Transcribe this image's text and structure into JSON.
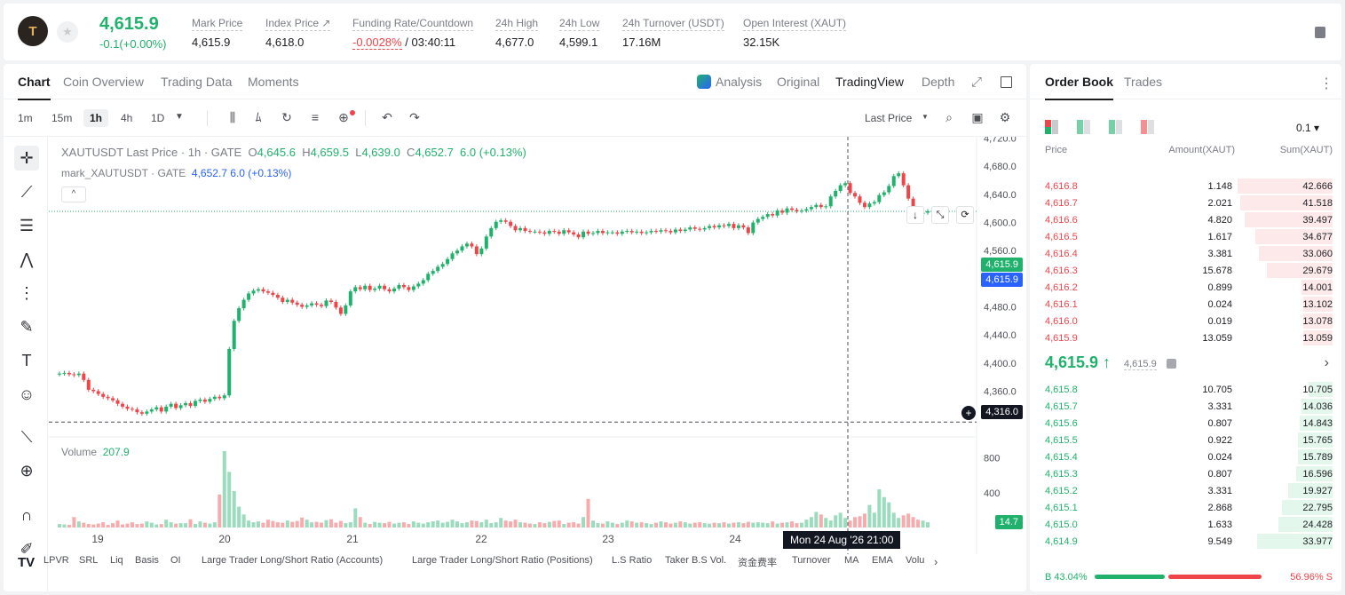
{
  "header": {
    "last_price": "4,615.9",
    "change": "-0.1(+0.00%)",
    "stats": [
      {
        "label": "Mark Price",
        "value": "4,615.9"
      },
      {
        "label": "Index Price ↗",
        "value": "4,618.0"
      },
      {
        "label": "Funding Rate/Countdown",
        "value_red": "-0.0028%",
        "value": " / 03:40:11"
      },
      {
        "label": "24h High",
        "value": "4,677.0"
      },
      {
        "label": "24h Low",
        "value": "4,599.1"
      },
      {
        "label": "24h Turnover (USDT)",
        "value": "17.16M"
      },
      {
        "label": "Open Interest (XAUT)",
        "value": "32.15K"
      }
    ]
  },
  "chart_tabs": [
    "Chart",
    "Coin Overview",
    "Trading Data",
    "Moments"
  ],
  "chart_views": [
    "Analysis",
    "Original",
    "TradingView",
    "Depth"
  ],
  "timeframes": [
    "1m",
    "15m",
    "1h",
    "4h",
    "1D"
  ],
  "price_source": "Last Price",
  "legend": {
    "symbol": "XAUTUSDT Last Price · 1h · GATE",
    "o": "O",
    "o_val": "4,645.6",
    "h": "H",
    "h_val": "4,659.5",
    "l": "L",
    "l_val": "4,639.0",
    "c": "C",
    "c_val": "4,652.7",
    "chg": "6.0 (+0.13%)",
    "mark_label": "mark_XAUTUSDT · GATE",
    "mark_val": "4,652.7 6.0 (+0.13%)"
  },
  "volume_legend": {
    "label": "Volume",
    "value": "207.9"
  },
  "price_tags": {
    "p1": "4,615.9",
    "p2": "4,615.9",
    "cross": "4,316.0",
    "vol": "14.7"
  },
  "crosshair_time": "Mon 24 Aug '26   21:00",
  "indicators": [
    "LPVR",
    "SRL",
    "Liq",
    "Basis",
    "OI",
    "Large Trader Long/Short Ratio (Accounts)",
    "Large Trader Long/Short Ratio (Positions)",
    "L.S Ratio",
    "Taker B.S Vol.",
    "资金费率",
    "Turnover",
    "MA",
    "EMA",
    "Volu"
  ],
  "chart_data": {
    "type": "candlestick",
    "symbol": "XAUTUSDT",
    "x_ticks": [
      "19",
      "20",
      "21",
      "22",
      "23",
      "24"
    ],
    "y_ticks": [
      4720,
      4680,
      4640,
      4600,
      4560,
      4520,
      4480,
      4440,
      4400,
      4360
    ],
    "ylim": [
      4305,
      4722
    ],
    "vol_ticks": [
      800,
      400
    ],
    "vol_ylim": [
      0,
      920
    ],
    "close_path": [
      4385,
      4386,
      4384,
      4383,
      4385,
      4376,
      4362,
      4360,
      4356,
      4352,
      4350,
      4347,
      4342,
      4338,
      4335,
      4334,
      4330,
      4328,
      4331,
      4334,
      4337,
      4331,
      4338,
      4342,
      4336,
      4340,
      4343,
      4339,
      4346,
      4348,
      4345,
      4349,
      4352,
      4350,
      4354,
      4420,
      4460,
      4478,
      4490,
      4499,
      4503,
      4505,
      4502,
      4500,
      4497,
      4493,
      4487,
      4490,
      4486,
      4483,
      4480,
      4482,
      4485,
      4483,
      4481,
      4489,
      4487,
      4479,
      4470,
      4482,
      4502,
      4508,
      4505,
      4510,
      4504,
      4506,
      4510,
      4505,
      4502,
      4506,
      4511,
      4508,
      4504,
      4509,
      4513,
      4518,
      4527,
      4531,
      4537,
      4541,
      4548,
      4556,
      4560,
      4566,
      4570,
      4566,
      4555,
      4563,
      4580,
      4592,
      4601,
      4603,
      4601,
      4595,
      4589,
      4592,
      4588,
      4587,
      4587,
      4586,
      4584,
      4588,
      4587,
      4584,
      4589,
      4586,
      4583,
      4579,
      4587,
      4584,
      4585,
      4588,
      4585,
      4586,
      4586,
      4584,
      4587,
      4588,
      4586,
      4587,
      4585,
      4586,
      4588,
      4587,
      4589,
      4588,
      4586,
      4590,
      4588,
      4590,
      4593,
      4591,
      4590,
      4592,
      4595,
      4593,
      4596,
      4595,
      4598,
      4592,
      4596,
      4593,
      4585,
      4600,
      4605,
      4608,
      4612,
      4610,
      4617,
      4614,
      4620,
      4618,
      4616,
      4617,
      4619,
      4622,
      4625,
      4622,
      4623,
      4637,
      4645,
      4653,
      4656,
      4642,
      4637,
      4628,
      4622,
      4627,
      4629,
      4639,
      4643,
      4652,
      4666,
      4670,
      4653,
      4634,
      4619,
      4612,
      4614,
      4616
    ],
    "volumes": [
      40,
      35,
      30,
      120,
      70,
      55,
      40,
      35,
      45,
      60,
      30,
      50,
      80,
      35,
      45,
      60,
      40,
      45,
      70,
      55,
      35,
      40,
      90,
      60,
      45,
      50,
      50,
      95,
      40,
      70,
      55,
      45,
      60,
      380,
      880,
      640,
      420,
      240,
      150,
      80,
      60,
      70,
      55,
      90,
      75,
      60,
      55,
      80,
      65,
      75,
      115,
      90,
      60,
      65,
      55,
      85,
      95,
      55,
      75,
      50,
      60,
      220,
      120,
      55,
      40,
      65,
      55,
      50,
      65,
      45,
      55,
      60,
      40,
      70,
      55,
      45,
      60,
      70,
      80,
      55,
      65,
      90,
      70,
      50,
      60,
      80,
      75,
      60,
      90,
      50,
      60,
      110,
      80,
      70,
      90,
      60,
      55,
      45,
      40,
      60,
      50,
      65,
      75,
      80,
      40,
      55,
      60,
      45,
      120,
      330,
      80,
      50,
      45,
      70,
      55,
      40,
      55,
      80,
      70,
      55,
      60,
      50,
      40,
      55,
      70,
      60,
      45,
      55,
      70,
      60,
      45,
      55,
      60,
      50,
      45,
      55,
      50,
      60,
      45,
      55,
      60,
      50,
      65,
      55,
      60,
      55,
      50,
      70,
      45,
      55,
      60,
      70,
      50,
      55,
      90,
      120,
      180,
      150,
      110,
      80,
      140,
      170,
      110,
      80,
      120,
      130,
      160,
      260,
      170,
      440,
      350,
      290,
      170,
      110,
      140,
      160,
      120,
      90,
      80,
      60,
      100,
      150,
      260,
      200,
      90,
      60,
      50,
      55,
      60,
      65
    ]
  },
  "orderbook": {
    "tabs": [
      "Order Book",
      "Trades"
    ],
    "precision": "0.1",
    "headers": [
      "Price",
      "Amount(XAUT)",
      "Sum(XAUT)"
    ],
    "asks": [
      {
        "price": "4,616.8",
        "amount": "1.148",
        "sum": "42.666",
        "depth": 0.42666
      },
      {
        "price": "4,616.7",
        "amount": "2.021",
        "sum": "41.518",
        "depth": 0.41518
      },
      {
        "price": "4,616.6",
        "amount": "4.820",
        "sum": "39.497",
        "depth": 0.39497
      },
      {
        "price": "4,616.5",
        "amount": "1.617",
        "sum": "34.677",
        "depth": 0.34677
      },
      {
        "price": "4,616.4",
        "amount": "3.381",
        "sum": "33.060",
        "depth": 0.3306
      },
      {
        "price": "4,616.3",
        "amount": "15.678",
        "sum": "29.679",
        "depth": 0.29679
      },
      {
        "price": "4,616.2",
        "amount": "0.899",
        "sum": "14.001",
        "depth": 0.14001
      },
      {
        "price": "4,616.1",
        "amount": "0.024",
        "sum": "13.102",
        "depth": 0.13102
      },
      {
        "price": "4,616.0",
        "amount": "0.019",
        "sum": "13.078",
        "depth": 0.13078
      },
      {
        "price": "4,615.9",
        "amount": "13.059",
        "sum": "13.059",
        "depth": 0.13059
      }
    ],
    "mid_price": "4,615.9 ↑",
    "mark_price": "4,615.9",
    "bids": [
      {
        "price": "4,615.8",
        "amount": "10.705",
        "sum": "10.705",
        "depth": 0.10705
      },
      {
        "price": "4,615.7",
        "amount": "3.331",
        "sum": "14.036",
        "depth": 0.14036
      },
      {
        "price": "4,615.6",
        "amount": "0.807",
        "sum": "14.843",
        "depth": 0.14843
      },
      {
        "price": "4,615.5",
        "amount": "0.922",
        "sum": "15.765",
        "depth": 0.15765
      },
      {
        "price": "4,615.4",
        "amount": "0.024",
        "sum": "15.789",
        "depth": 0.15789
      },
      {
        "price": "4,615.3",
        "amount": "0.807",
        "sum": "16.596",
        "depth": 0.16596
      },
      {
        "price": "4,615.2",
        "amount": "3.331",
        "sum": "19.927",
        "depth": 0.19927
      },
      {
        "price": "4,615.1",
        "amount": "2.868",
        "sum": "22.795",
        "depth": 0.22795
      },
      {
        "price": "4,615.0",
        "amount": "1.633",
        "sum": "24.428",
        "depth": 0.24428
      },
      {
        "price": "4,614.9",
        "amount": "9.549",
        "sum": "33.977",
        "depth": 0.33977
      }
    ],
    "buy_ratio": "B 43.04%",
    "sell_ratio": "56.96% S",
    "buy_pct": 43.04,
    "colors": {
      "up": "#20b26c",
      "down": "#ef454a"
    }
  }
}
